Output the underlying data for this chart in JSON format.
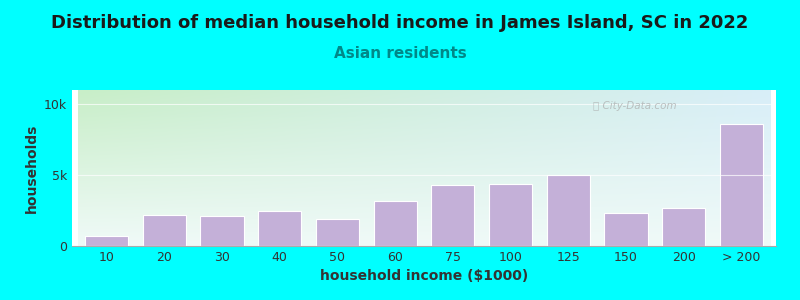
{
  "title": "Distribution of median household income in James Island, SC in 2022",
  "subtitle": "Asian residents",
  "xlabel": "household income ($1000)",
  "ylabel": "households",
  "background_color": "#00FFFF",
  "bar_color": "#C4B0D8",
  "bar_edgecolor": "#ffffff",
  "categories": [
    "10",
    "20",
    "30",
    "40",
    "50",
    "60",
    "75",
    "100",
    "125",
    "150",
    "200",
    "> 200"
  ],
  "values": [
    700,
    2200,
    2100,
    2500,
    1900,
    3200,
    4300,
    4400,
    5000,
    2300,
    2700,
    8600
  ],
  "ylim": [
    0,
    11000
  ],
  "yticks": [
    0,
    5000,
    10000
  ],
  "ytick_labels": [
    "0",
    "5k",
    "10k"
  ],
  "watermark": "City-Data.com",
  "title_fontsize": 13,
  "subtitle_fontsize": 11,
  "axis_label_fontsize": 10,
  "tick_fontsize": 9,
  "grad_top_left": "#c8eec8",
  "grad_top_right": "#d8eef8",
  "grad_bottom": "#f0faf8"
}
